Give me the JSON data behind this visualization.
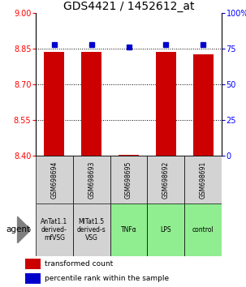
{
  "title": "GDS4421 / 1452612_at",
  "samples": [
    "GSM698694",
    "GSM698693",
    "GSM698695",
    "GSM698692",
    "GSM698691"
  ],
  "agents": [
    "AnTat1.1\nderived-\nmfVSG",
    "MITat1.5\nderived-s\nVSG",
    "TNFα",
    "LPS",
    "control"
  ],
  "agent_colors": [
    "#d3d3d3",
    "#d3d3d3",
    "#90ee90",
    "#90ee90",
    "#90ee90"
  ],
  "bar_values": [
    8.835,
    8.838,
    8.402,
    8.836,
    8.826
  ],
  "bar_base": 8.4,
  "percentile_values": [
    78,
    78,
    76,
    78,
    78
  ],
  "ylim_left": [
    8.4,
    9.0
  ],
  "yticks_left": [
    8.4,
    8.55,
    8.7,
    8.85,
    9.0
  ],
  "yticks_right": [
    0,
    25,
    50,
    75,
    100
  ],
  "bar_color": "#cc0000",
  "dot_color": "#0000cc",
  "background_color": "#ffffff",
  "title_fontsize": 10,
  "tick_fontsize": 7,
  "gsm_fontsize": 5.5,
  "agent_fontsize": 5.5,
  "legend_fontsize": 6.5,
  "agent_label_fontsize": 7.5
}
